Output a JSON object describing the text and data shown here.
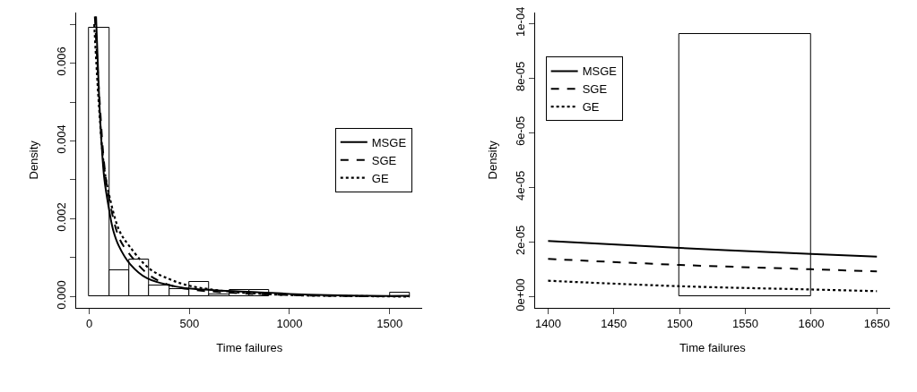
{
  "chart_data": [
    {
      "type": "histogram",
      "xlabel": "Time failures",
      "ylabel": "Density",
      "bins": [
        0,
        100,
        200,
        300,
        400,
        500,
        600,
        700,
        800,
        900,
        1000,
        1100,
        1200,
        1300,
        1400,
        1500,
        1600
      ],
      "values": [
        0.0069,
        0.00067,
        0.00095,
        0.00028,
        0.00019,
        0.00038,
        5e-05,
        0.00018,
        0.00018,
        0,
        0,
        0,
        0,
        0,
        0,
        0.0001
      ],
      "color": "#ffffff",
      "series": [
        {
          "name": "MSGE",
          "type": "line",
          "line_style": "solid",
          "color": "#000000",
          "x": [
            34,
            48,
            62,
            76,
            97,
            120,
            148,
            205,
            289,
            430,
            571,
            853,
            1000,
            1400,
            1600
          ],
          "values": [
            0.0072,
            0.0053,
            0.0039,
            0.003,
            0.0023,
            0.0017,
            0.0013,
            0.00083,
            0.00047,
            0.00026,
            0.00018,
            0.00011,
            7e-05,
            2e-05,
            2e-05
          ]
        },
        {
          "name": "SGE",
          "type": "line",
          "line_style": "dashed",
          "color": "#000000",
          "x": [
            28,
            50,
            75,
            100,
            150,
            200,
            300,
            400,
            500,
            700,
            1000,
            1400,
            1600
          ],
          "values": [
            0.0072,
            0.0052,
            0.0034,
            0.0025,
            0.0015,
            0.0011,
            0.00055,
            0.0003,
            0.00019,
            0.0001,
            4e-05,
            1e-05,
            1e-05
          ]
        },
        {
          "name": "GE",
          "type": "line",
          "line_style": "dotted",
          "color": "#000000",
          "x": [
            25,
            50,
            75,
            100,
            150,
            200,
            300,
            400,
            500,
            700,
            1000,
            1400,
            1600
          ],
          "values": [
            0.007,
            0.0048,
            0.0033,
            0.0026,
            0.0017,
            0.0013,
            0.00072,
            0.00045,
            0.00028,
            0.00013,
            4e-05,
            1e-05,
            0
          ]
        }
      ],
      "xlim": [
        -64,
        1664
      ],
      "ylim": [
        -0.00028,
        0.0073
      ],
      "xticks": [
        0,
        500,
        1000,
        1500
      ],
      "yticks": [
        {
          "value": 0,
          "label": "0.000"
        },
        {
          "value": 0.001,
          "label": null
        },
        {
          "value": 0.002,
          "label": "0.002"
        },
        {
          "value": 0.003,
          "label": null
        },
        {
          "value": 0.004,
          "label": "0.004"
        },
        {
          "value": 0.005,
          "label": null
        },
        {
          "value": 0.006,
          "label": "0.006"
        },
        {
          "value": 0.007,
          "label": null
        }
      ],
      "legend": "right"
    },
    {
      "type": "histogram",
      "xlabel": "Time failures",
      "ylabel": "Density",
      "bins": [
        1500,
        1600
      ],
      "values": [
        9.6e-05
      ],
      "color": "#ffffff",
      "series": [
        {
          "name": "MSGE",
          "type": "line",
          "line_style": "solid",
          "color": "#000000",
          "x": [
            1400,
            1500,
            1600,
            1650
          ],
          "values": [
            2.04e-05,
            1.78e-05,
            1.56e-05,
            1.46e-05
          ]
        },
        {
          "name": "SGE",
          "type": "line",
          "line_style": "dashed",
          "color": "#000000",
          "x": [
            1400,
            1500,
            1600,
            1650
          ],
          "values": [
            1.38e-05,
            1.16e-05,
            1e-05,
            9.2e-06
          ]
        },
        {
          "name": "GE",
          "type": "line",
          "line_style": "dotted",
          "color": "#000000",
          "x": [
            1400,
            1500,
            1600,
            1650
          ],
          "values": [
            5.8e-06,
            3.8e-06,
            2.6e-06,
            2e-06
          ]
        }
      ],
      "xlim": [
        1390,
        1660
      ],
      "ylim": [
        -4e-06,
        0.000104
      ],
      "xticks": [
        1400,
        1450,
        1500,
        1550,
        1600,
        1650
      ],
      "yticks": [
        {
          "value": 0,
          "label": "0e+00"
        },
        {
          "value": 2e-05,
          "label": "2e-05"
        },
        {
          "value": 4e-05,
          "label": "4e-05"
        },
        {
          "value": 6e-05,
          "label": "6e-05"
        },
        {
          "value": 8e-05,
          "label": "8e-05"
        },
        {
          "value": 0.0001,
          "label": "1e-04"
        }
      ],
      "legend": "top left"
    }
  ]
}
